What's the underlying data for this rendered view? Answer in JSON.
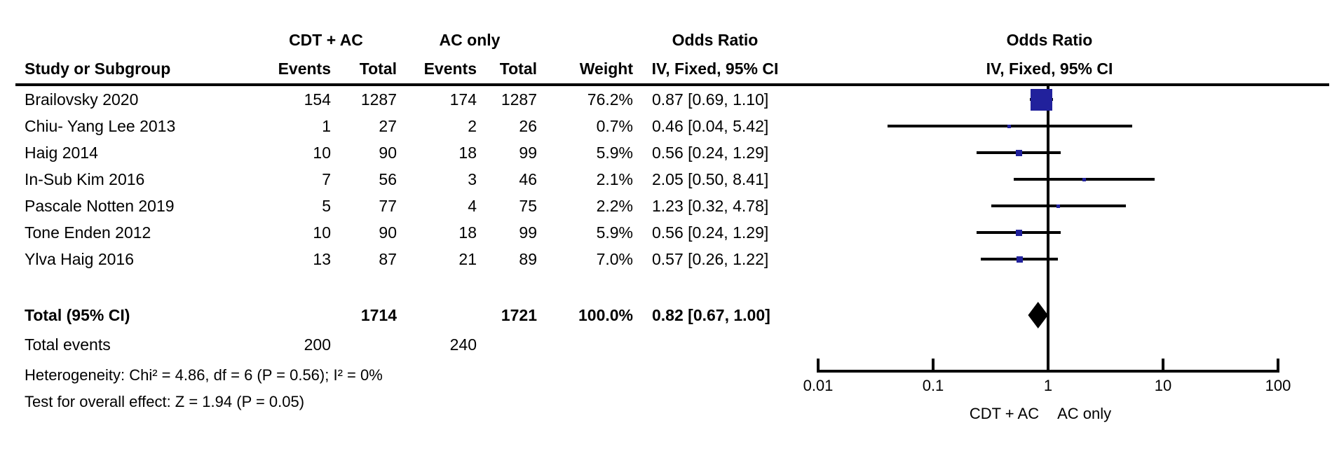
{
  "headers": {
    "group1": "CDT + AC",
    "group2": "AC only",
    "study": "Study or Subgroup",
    "events1": "Events",
    "total1": "Total",
    "events2": "Events",
    "total2": "Total",
    "weight": "Weight",
    "or_line1": "Odds Ratio",
    "or_line2": "IV, Fixed, 95% CI",
    "plot_or_line1": "Odds Ratio",
    "plot_or_line2": "IV, Fixed, 95% CI"
  },
  "total": {
    "label": "Total (95% CI)",
    "total1": "1714",
    "total2": "1721",
    "weight": "100.0%",
    "or_label": "0.82 [0.67, 1.00]"
  },
  "total_events": {
    "label": "Total events",
    "events1": "200",
    "events2": "240"
  },
  "footer": {
    "heterogeneity": "Heterogeneity: Chi² = 4.86, df = 6 (P = 0.56); I² = 0%",
    "overall_effect": "Test for overall effect: Z = 1.94 (P = 0.05)"
  },
  "axis": {
    "left_label": "CDT + AC",
    "right_label": "AC only"
  },
  "colors": {
    "marker": "#21219C",
    "diamond": "#000000",
    "line": "#000000"
  },
  "chart_data": {
    "type": "scatter",
    "variant": "forest-plot-meta-analysis",
    "effect_measure": "Odds Ratio, IV, Fixed, 95% CI",
    "x_scale": "log10",
    "xlim": [
      0.01,
      100
    ],
    "x_ticks": [
      0.01,
      0.1,
      1,
      10,
      100
    ],
    "x_tick_labels": [
      "0.01",
      "0.1",
      "1",
      "10",
      "100"
    ],
    "favours_left": "CDT + AC",
    "favours_right": "AC only",
    "studies": [
      {
        "name": "Brailovsky 2020",
        "events1": "154",
        "total1": "1287",
        "events2": "174",
        "total2": "1287",
        "weight": "76.2%",
        "weight_pct": 76.2,
        "or": 0.87,
        "ci_low": 0.69,
        "ci_high": 1.1,
        "or_label": "0.87 [0.69, 1.10]"
      },
      {
        "name": "Chiu- Yang Lee 2013",
        "events1": "1",
        "total1": "27",
        "events2": "2",
        "total2": "26",
        "weight": "0.7%",
        "weight_pct": 0.7,
        "or": 0.46,
        "ci_low": 0.04,
        "ci_high": 5.42,
        "or_label": "0.46 [0.04, 5.42]"
      },
      {
        "name": "Haig 2014",
        "events1": "10",
        "total1": "90",
        "events2": "18",
        "total2": "99",
        "weight": "5.9%",
        "weight_pct": 5.9,
        "or": 0.56,
        "ci_low": 0.24,
        "ci_high": 1.29,
        "or_label": "0.56 [0.24, 1.29]"
      },
      {
        "name": "In-Sub Kim 2016",
        "events1": "7",
        "total1": "56",
        "events2": "3",
        "total2": "46",
        "weight": "2.1%",
        "weight_pct": 2.1,
        "or": 2.05,
        "ci_low": 0.5,
        "ci_high": 8.41,
        "or_label": "2.05 [0.50, 8.41]"
      },
      {
        "name": "Pascale Notten 2019",
        "events1": "5",
        "total1": "77",
        "events2": "4",
        "total2": "75",
        "weight": "2.2%",
        "weight_pct": 2.2,
        "or": 1.23,
        "ci_low": 0.32,
        "ci_high": 4.78,
        "or_label": "1.23 [0.32, 4.78]"
      },
      {
        "name": "Tone Enden 2012",
        "events1": "10",
        "total1": "90",
        "events2": "18",
        "total2": "99",
        "weight": "5.9%",
        "weight_pct": 5.9,
        "or": 0.56,
        "ci_low": 0.24,
        "ci_high": 1.29,
        "or_label": "0.56 [0.24, 1.29]"
      },
      {
        "name": "Ylva Haig 2016",
        "events1": "13",
        "total1": "87",
        "events2": "21",
        "total2": "89",
        "weight": "7.0%",
        "weight_pct": 7.0,
        "or": 0.57,
        "ci_low": 0.26,
        "ci_high": 1.22,
        "or_label": "0.57 [0.26, 1.22]"
      }
    ],
    "total": {
      "label": "Total (95% CI)",
      "total1": 1714,
      "total2": 1721,
      "weight_pct": 100.0,
      "or": 0.82,
      "ci_low": 0.67,
      "ci_high": 1.0,
      "or_label": "0.82 [0.67, 1.00]"
    },
    "total_events": {
      "events1": 200,
      "events2": 240
    },
    "heterogeneity": "Heterogeneity: Chi² = 4.86, df = 6 (P = 0.56); I² = 0%",
    "test_overall": "Test for overall effect: Z = 1.94 (P = 0.05)"
  }
}
